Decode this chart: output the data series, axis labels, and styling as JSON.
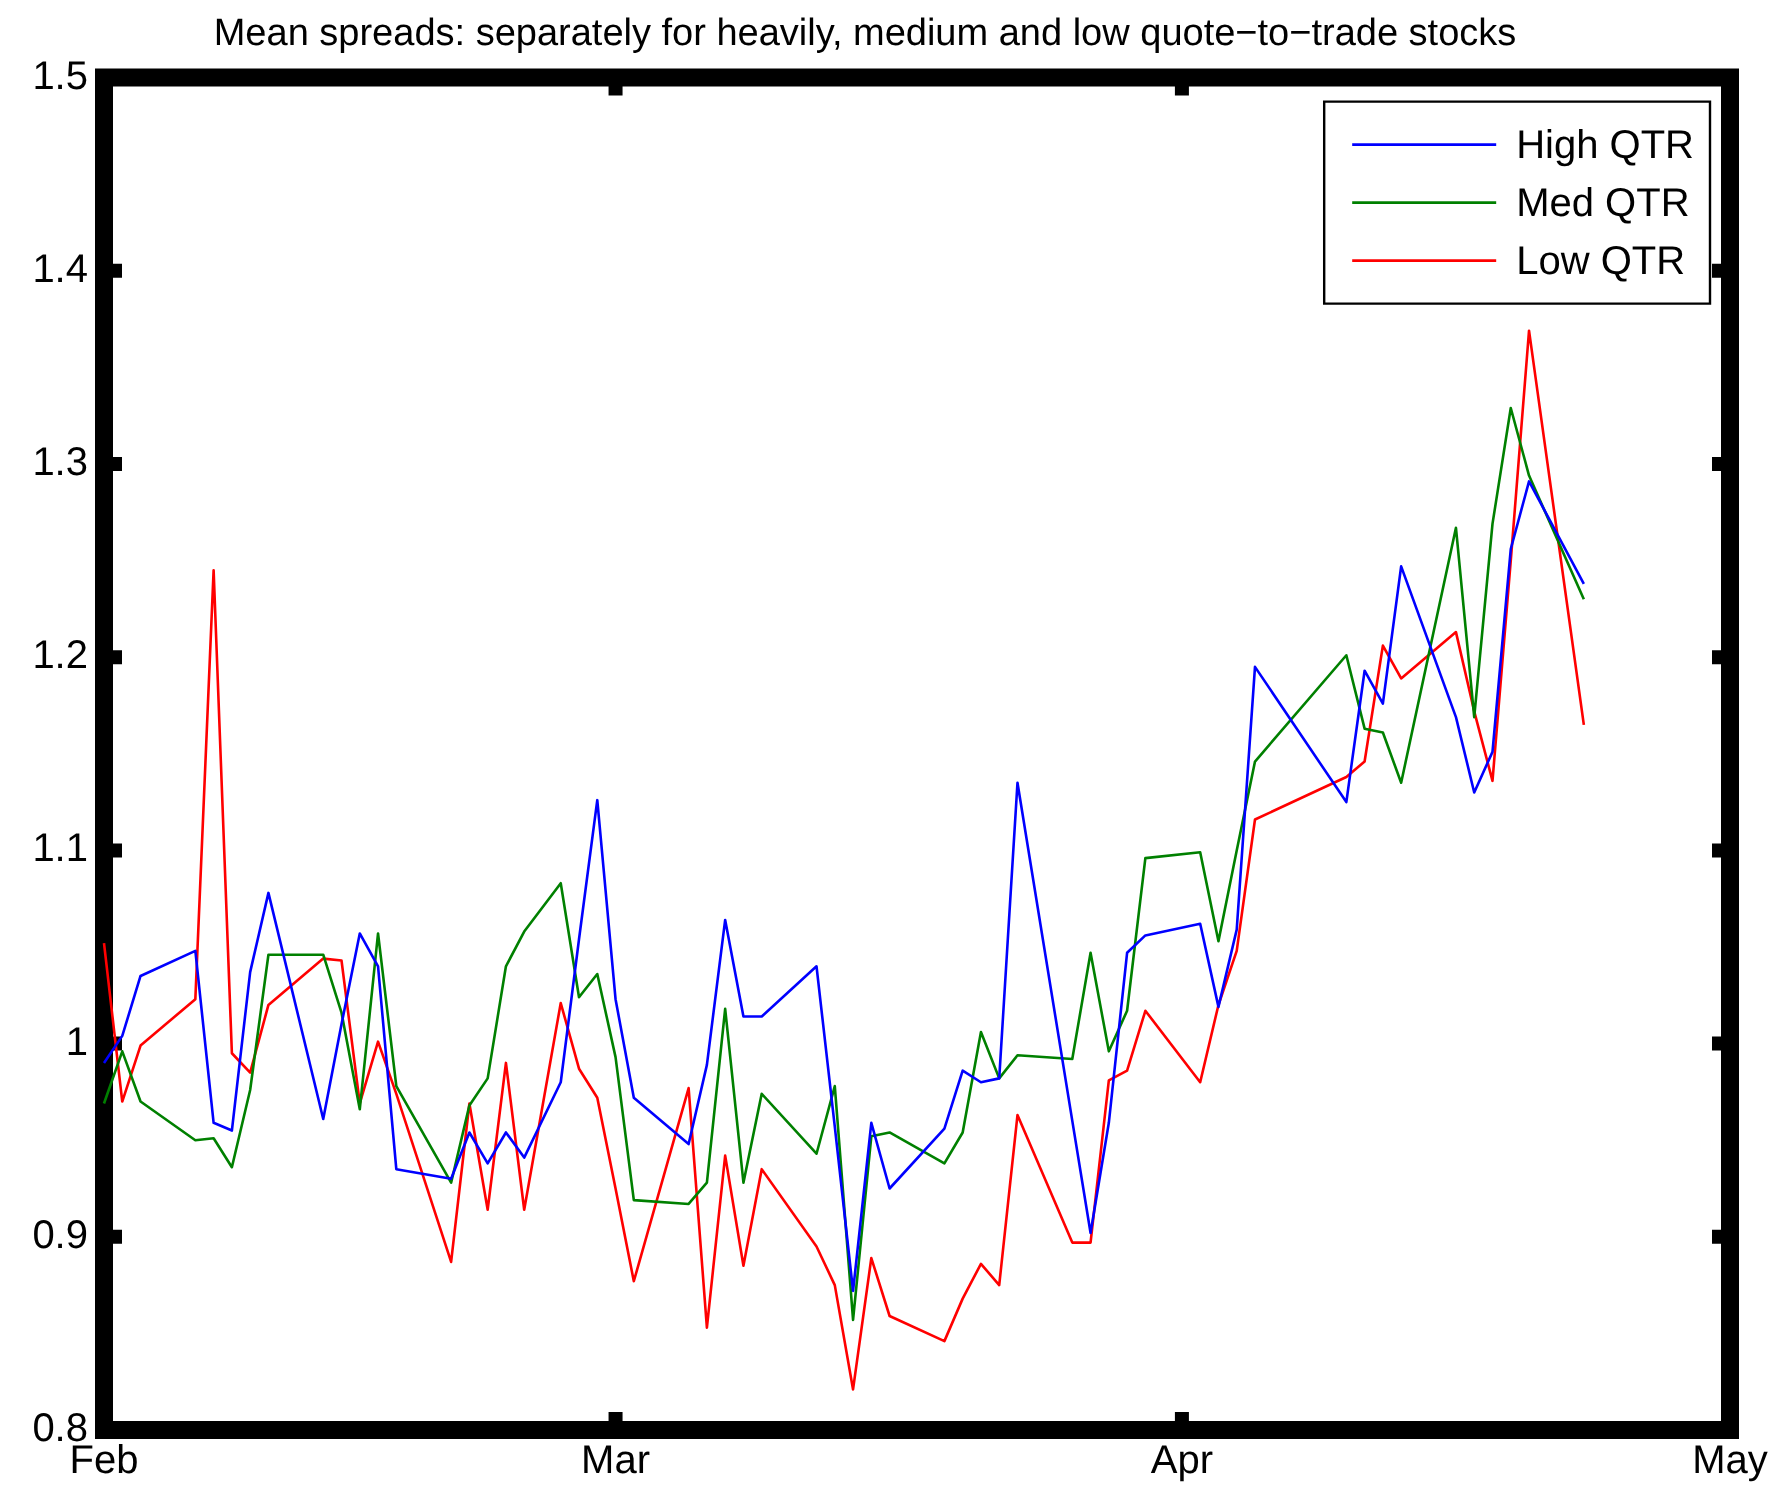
{
  "chart_data": {
    "type": "line",
    "title": "Mean spreads: separately for heavily, medium and low quote−to−trade stocks",
    "x": [
      "--02-01",
      "--02-02",
      "--02-03",
      "--02-06",
      "--02-07",
      "--02-08",
      "--02-09",
      "--02-10",
      "--02-13",
      "--02-14",
      "--02-15",
      "--02-16",
      "--02-17",
      "--02-20",
      "--02-21",
      "--02-22",
      "--02-23",
      "--02-24",
      "--02-26",
      "--02-27",
      "--02-28",
      "--03-01",
      "--03-02",
      "--03-05",
      "--03-06",
      "--03-07",
      "--03-08",
      "--03-09",
      "--03-12",
      "--03-13",
      "--03-14",
      "--03-15",
      "--03-16",
      "--03-19",
      "--03-20",
      "--03-21",
      "--03-22",
      "--03-23",
      "--03-26",
      "--03-27",
      "--03-28",
      "--03-29",
      "--03-30",
      "--04-02",
      "--04-03",
      "--04-04",
      "--04-05",
      "--04-10",
      "--04-11",
      "--04-12",
      "--04-13",
      "--04-16",
      "--04-17",
      "--04-18",
      "--04-19",
      "--04-20",
      "--04-23"
    ],
    "series": [
      {
        "name": "High QTR",
        "color": "#0000ff",
        "values": [
          0.99,
          1.004,
          1.035,
          1.048,
          0.959,
          0.955,
          1.037,
          1.078,
          0.961,
          1.01,
          1.057,
          1.04,
          0.935,
          0.93,
          0.954,
          0.938,
          0.954,
          0.941,
          0.98,
          1.054,
          1.126,
          1.023,
          0.972,
          0.948,
          0.989,
          1.064,
          1.014,
          1.014,
          1.04,
          0.957,
          0.872,
          0.959,
          0.925,
          0.956,
          0.986,
          0.98,
          0.982,
          1.135,
          0.96,
          0.902,
          0.959,
          1.047,
          1.056,
          1.062,
          1.019,
          1.059,
          1.195,
          1.125,
          1.193,
          1.176,
          1.247,
          1.169,
          1.13,
          1.151,
          1.256,
          1.291,
          1.238
        ]
      },
      {
        "name": "Med QTR",
        "color": "#008000",
        "values": [
          0.969,
          0.996,
          0.97,
          0.95,
          0.951,
          0.936,
          0.976,
          1.046,
          1.046,
          1.016,
          0.966,
          1.057,
          0.978,
          0.928,
          0.968,
          0.982,
          1.04,
          1.058,
          1.083,
          1.024,
          1.036,
          0.993,
          0.919,
          0.917,
          0.928,
          1.018,
          0.928,
          0.974,
          0.943,
          0.978,
          0.857,
          0.952,
          0.954,
          0.938,
          0.954,
          1.006,
          0.982,
          0.994,
          0.992,
          1.047,
          0.996,
          1.017,
          1.096,
          1.099,
          1.053,
          1.1,
          1.146,
          1.201,
          1.163,
          1.161,
          1.135,
          1.267,
          1.169,
          1.269,
          1.329,
          1.294,
          1.23
        ]
      },
      {
        "name": "Low QTR",
        "color": "#ff0000",
        "values": [
          1.052,
          0.97,
          0.999,
          1.023,
          1.245,
          0.995,
          0.985,
          1.02,
          1.044,
          1.043,
          0.969,
          1.001,
          0.974,
          0.887,
          0.969,
          0.914,
          0.99,
          0.914,
          1.021,
          0.987,
          0.972,
          0.925,
          0.877,
          0.977,
          0.853,
          0.942,
          0.885,
          0.935,
          0.895,
          0.875,
          0.821,
          0.889,
          0.859,
          0.846,
          0.868,
          0.886,
          0.875,
          0.963,
          0.897,
          0.897,
          0.981,
          0.986,
          1.017,
          0.98,
          1.02,
          1.048,
          1.116,
          1.138,
          1.146,
          1.206,
          1.189,
          1.213,
          1.172,
          1.136,
          1.25,
          1.369,
          1.165
        ]
      }
    ],
    "xlim": [
      "--02-01",
      "--05-01"
    ],
    "xticks": [
      {
        "value": "--02-01",
        "label": "Feb"
      },
      {
        "value": "--03-01",
        "label": "Mar"
      },
      {
        "value": "--04-01",
        "label": "Apr"
      },
      {
        "value": "--05-01",
        "label": "May"
      }
    ],
    "ylim": [
      0.8,
      1.5
    ],
    "yticks": [
      0.8,
      0.9,
      1,
      1.1,
      1.2,
      1.3,
      1.4,
      1.5
    ],
    "grid": false,
    "legend": "top right",
    "marker": "none",
    "line_style": "solid"
  }
}
